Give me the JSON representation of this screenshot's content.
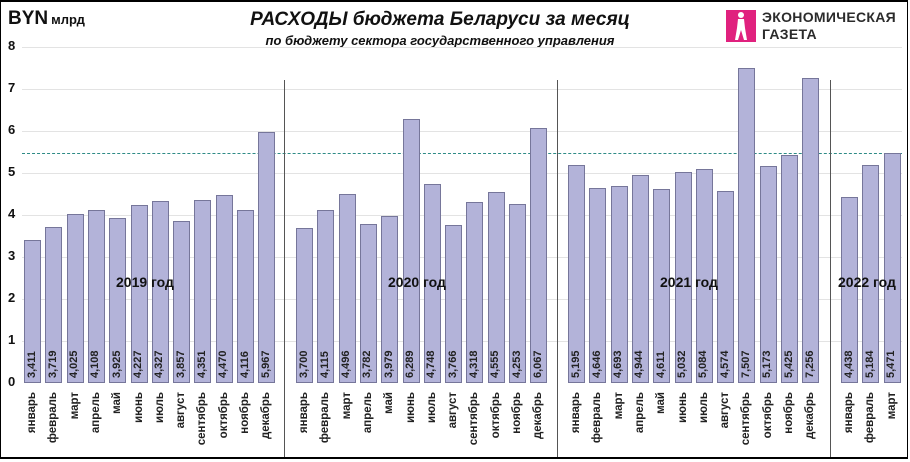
{
  "header": {
    "unit_main": "BYN",
    "unit_sub": "млрд",
    "title": "РАСХОДЫ бюджета Беларуси за месяц",
    "subtitle": "по бюджету сектора государственного управления"
  },
  "logo": {
    "icon": "walking-figure-icon",
    "line1": "ЭКОНОМИЧЕСКАЯ",
    "line2": "ГАЗЕТА",
    "color": "#e0217e"
  },
  "colors": {
    "bar_fill": "#b3b3d9",
    "bar_border": "#76769a",
    "reference_line": "#2e8b86"
  },
  "chart_data": {
    "type": "bar",
    "title": "РАСХОДЫ бюджета Беларуси за месяц",
    "subtitle": "по бюджету сектора государственного управления",
    "ylabel": "BYN млрд",
    "xlabel": "",
    "ylim": [
      0,
      8
    ],
    "yticks": [
      0,
      1,
      2,
      3,
      4,
      5,
      6,
      7,
      8
    ],
    "grid": true,
    "legend": "none",
    "reference_line": {
      "value": 5.471,
      "style": "dashed"
    },
    "groups": [
      {
        "label": "2019 год",
        "categories": [
          "январь",
          "февраль",
          "март",
          "апрель",
          "май",
          "июнь",
          "июль",
          "август",
          "сентябрь",
          "октябрь",
          "ноябрь",
          "декабрь"
        ],
        "values": [
          3.411,
          3.719,
          4.025,
          4.108,
          3.925,
          4.227,
          4.327,
          3.857,
          4.351,
          4.47,
          4.116,
          5.967
        ],
        "value_labels": [
          "3,411",
          "3,719",
          "4,025",
          "4,108",
          "3,925",
          "4,227",
          "4,327",
          "3,857",
          "4,351",
          "4,470",
          "4,116",
          "5,967"
        ]
      },
      {
        "label": "2020 год",
        "categories": [
          "январь",
          "февраль",
          "март",
          "апрель",
          "май",
          "июнь",
          "июль",
          "август",
          "сентябрь",
          "октябрь",
          "ноябрь",
          "декабрь"
        ],
        "values": [
          3.7,
          4.115,
          4.496,
          3.782,
          3.979,
          6.289,
          4.748,
          3.766,
          4.318,
          4.555,
          4.253,
          6.067
        ],
        "value_labels": [
          "3,700",
          "4,115",
          "4,496",
          "3,782",
          "3,979",
          "6,289",
          "4,748",
          "3,766",
          "4,318",
          "4,555",
          "4,253",
          "6,067"
        ]
      },
      {
        "label": "2021 год",
        "categories": [
          "январь",
          "февраль",
          "март",
          "апрель",
          "май",
          "июнь",
          "июль",
          "август",
          "сентябрь",
          "октябрь",
          "ноябрь",
          "декабрь"
        ],
        "values": [
          5.195,
          4.646,
          4.693,
          4.944,
          4.611,
          5.032,
          5.084,
          4.574,
          7.507,
          5.173,
          5.425,
          7.256
        ],
        "value_labels": [
          "5,195",
          "4,646",
          "4,693",
          "4,944",
          "4,611",
          "5,032",
          "5,084",
          "4,574",
          "7,507",
          "5,173",
          "5,425",
          "7,256"
        ]
      },
      {
        "label": "2022 год",
        "categories": [
          "январь",
          "февраль",
          "март"
        ],
        "values": [
          4.438,
          5.184,
          5.471
        ],
        "value_labels": [
          "4,438",
          "5,184",
          "5,471"
        ]
      }
    ]
  }
}
